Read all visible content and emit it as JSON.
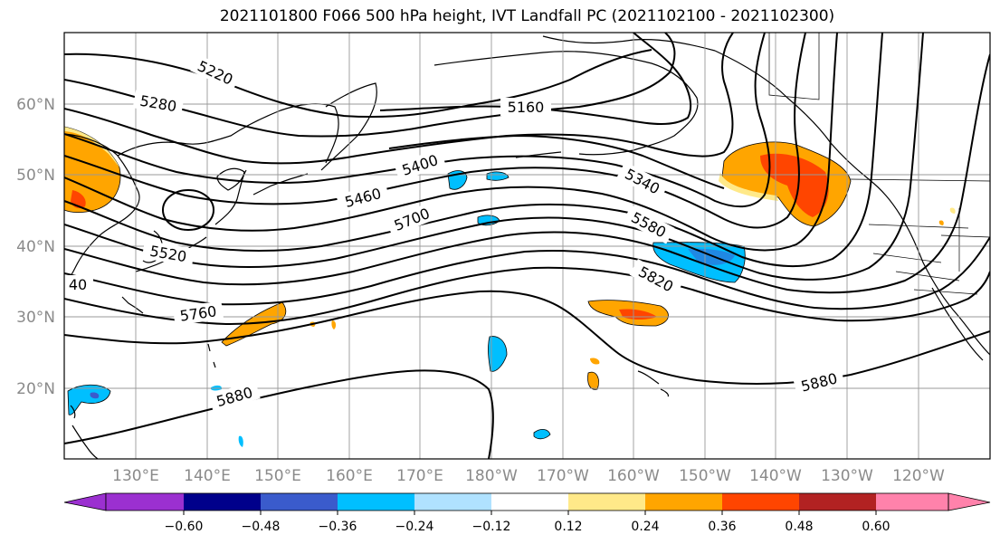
{
  "title": "2021101800 F066 500 hPa height, IVT Landfall PC (2021102100 - 2021102300)",
  "lat_labels": [
    "60°N",
    "50°N",
    "40°N",
    "30°N",
    "20°N"
  ],
  "lon_labels": [
    "130°E",
    "140°E",
    "150°E",
    "160°E",
    "170°E",
    "180°W",
    "170°W",
    "160°W",
    "150°W",
    "140°W",
    "130°W",
    "120°W"
  ],
  "contour_labels": [
    "5220",
    "5280",
    "5160",
    "5400",
    "5460",
    "5340",
    "5700",
    "5580",
    "5520",
    "5820",
    "40",
    "5760",
    "5880",
    "5880"
  ],
  "colorbar": {
    "ticks": [
      "−0.60",
      "−0.48",
      "−0.36",
      "−0.24",
      "−0.12",
      "0.12",
      "0.24",
      "0.36",
      "0.48",
      "0.60"
    ],
    "colors": [
      "#9b30d0",
      "#00008b",
      "#3a5bcc",
      "#00bfff",
      "#b0e2ff",
      "#ffffff",
      "#ffe989",
      "#ffa500",
      "#ff4500",
      "#b22222",
      "#ff82ab"
    ]
  },
  "shading_colors": {
    "pos_low": "#ffe989",
    "pos_mid": "#ffa500",
    "pos_high": "#ff4500",
    "neg_low": "#b0e2ff",
    "neg_mid": "#00bfff",
    "neg_high": "#3a5bcc"
  }
}
